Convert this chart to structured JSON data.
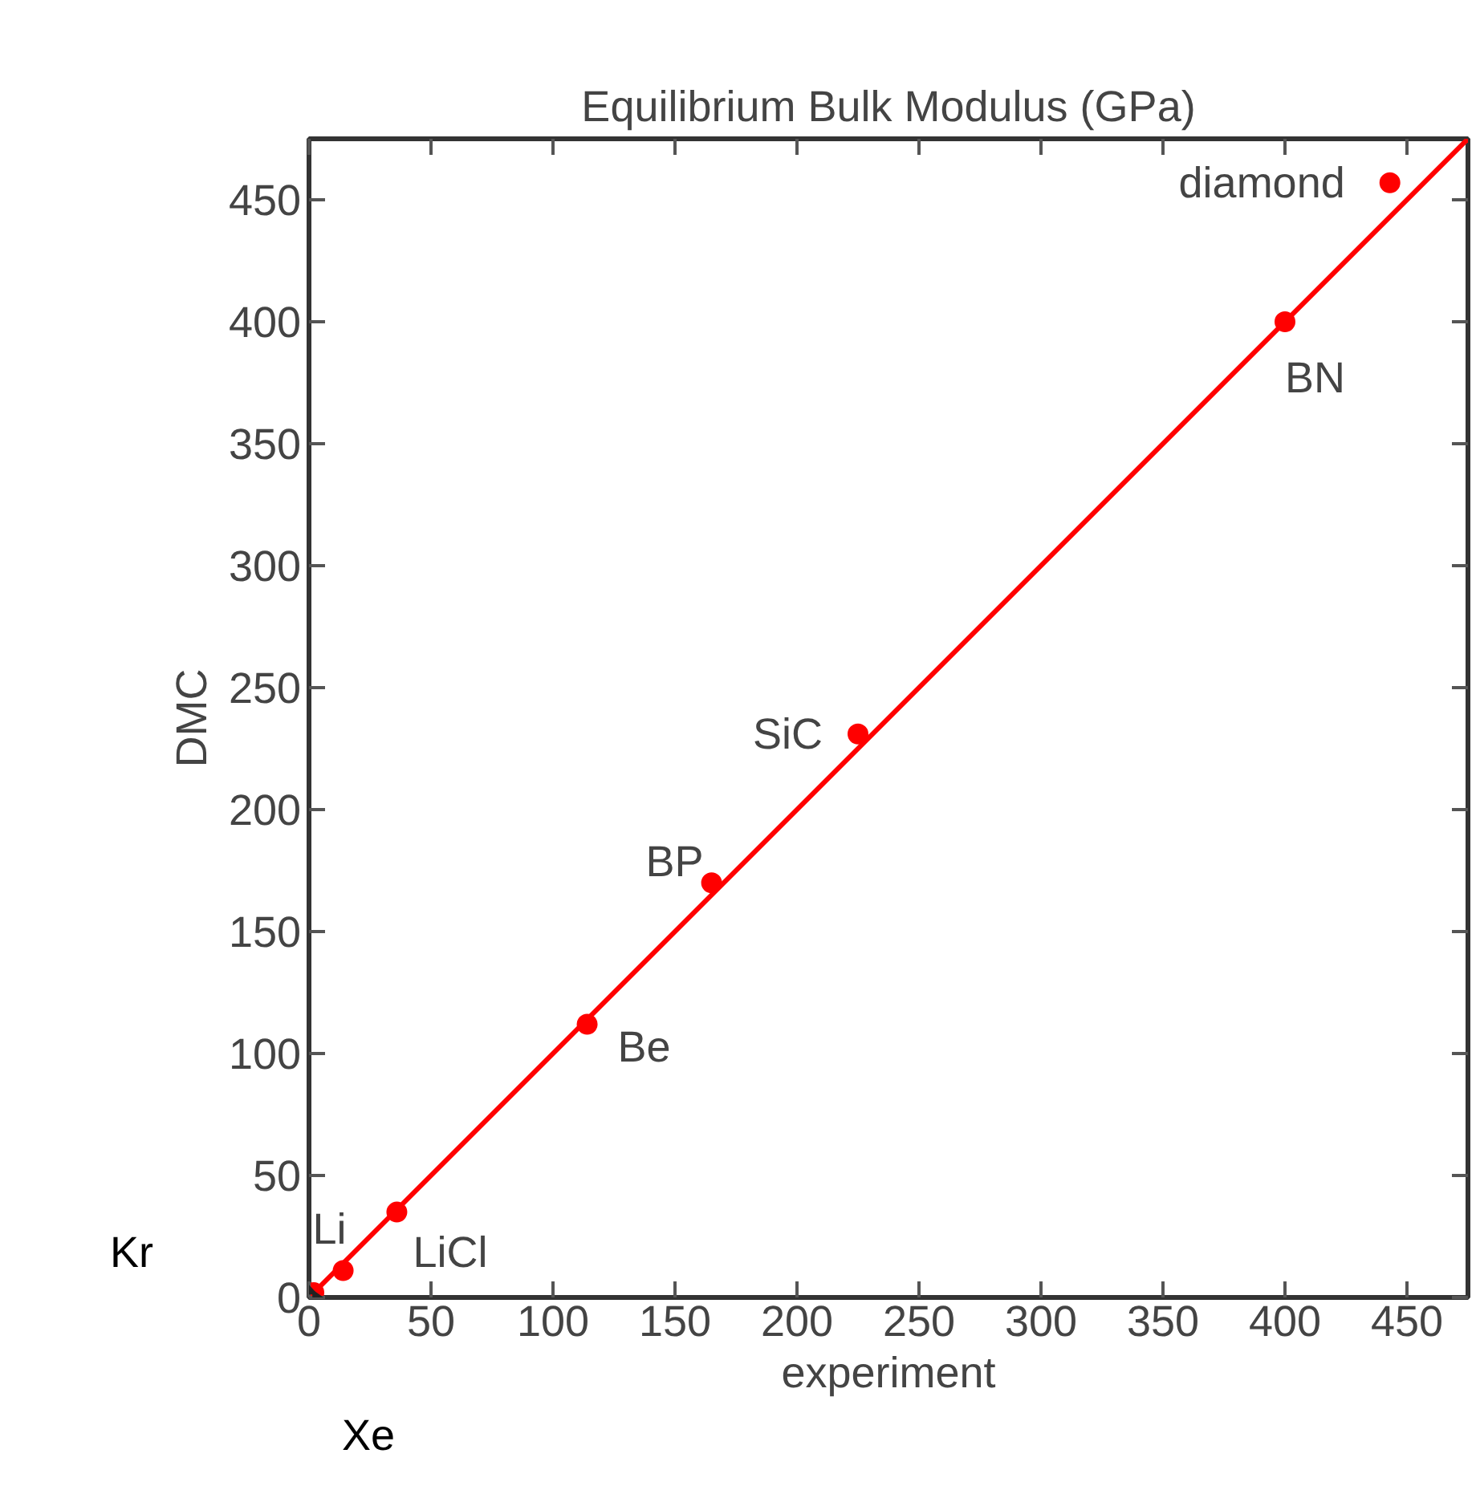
{
  "chart_data": {
    "type": "scatter",
    "title": "Equilibrium Bulk Modulus (GPa)",
    "xlabel": "experiment",
    "ylabel": "DMC",
    "series": [
      {
        "type": "line",
        "color": "#ff0000",
        "x": [
          0,
          475
        ],
        "values": [
          0,
          475
        ]
      },
      {
        "marker": "circle",
        "color": "#ff0000",
        "x": [
          443,
          400,
          225,
          165,
          114,
          36,
          14,
          2
        ],
        "values": [
          457,
          400,
          231,
          170,
          112,
          35,
          11,
          2
        ]
      }
    ],
    "annotations": [
      {
        "text": "diamond",
        "x": 443,
        "y": 457
      },
      {
        "text": "BN",
        "x": 400,
        "y": 400
      },
      {
        "text": "SiC",
        "x": 225,
        "y": 231
      },
      {
        "text": "BP",
        "x": 165,
        "y": 170
      },
      {
        "text": "Be",
        "x": 114,
        "y": 112
      },
      {
        "text": "LiCl",
        "x": 36,
        "y": 35
      },
      {
        "text": "Li",
        "x": 14,
        "y": 11
      },
      {
        "text": "Kr",
        "x": 2,
        "y": 2
      },
      {
        "text": "Xe",
        "x": 2,
        "y": 2
      }
    ],
    "xlim": [
      0,
      475
    ],
    "ylim": [
      0,
      475
    ],
    "xticks": [
      0,
      50,
      100,
      150,
      200,
      250,
      300,
      350,
      400,
      450
    ],
    "yticks": [
      0,
      50,
      100,
      150,
      200,
      250,
      300,
      350,
      400,
      450
    ],
    "grid": false
  }
}
